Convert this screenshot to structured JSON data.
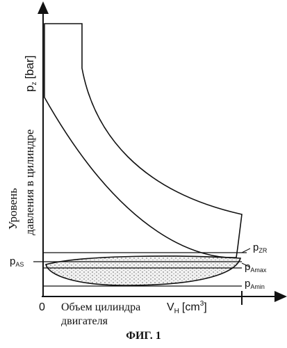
{
  "figure": {
    "caption": "ФИГ. 1",
    "y_axis": {
      "label_line1": "Уровень",
      "label_line2": "давления в цилиндре",
      "symbol": "p",
      "symbol_sub": "z",
      "unit": "[bar]"
    },
    "x_axis": {
      "origin": "0",
      "label_line1": "Объем цилиндра",
      "label_line2": "двигателя",
      "symbol": "V",
      "symbol_sub": "H",
      "unit": "[cm",
      "unit_sup": "3",
      "unit_close": "]"
    },
    "levels": {
      "p_as": {
        "symbol": "p",
        "sub": "AS"
      },
      "p_zr": {
        "symbol": "p",
        "sub": "ZR"
      },
      "p_amax": {
        "symbol": "p",
        "sub": "Amax"
      },
      "p_amin": {
        "symbol": "p",
        "sub": "Amin"
      }
    }
  }
}
